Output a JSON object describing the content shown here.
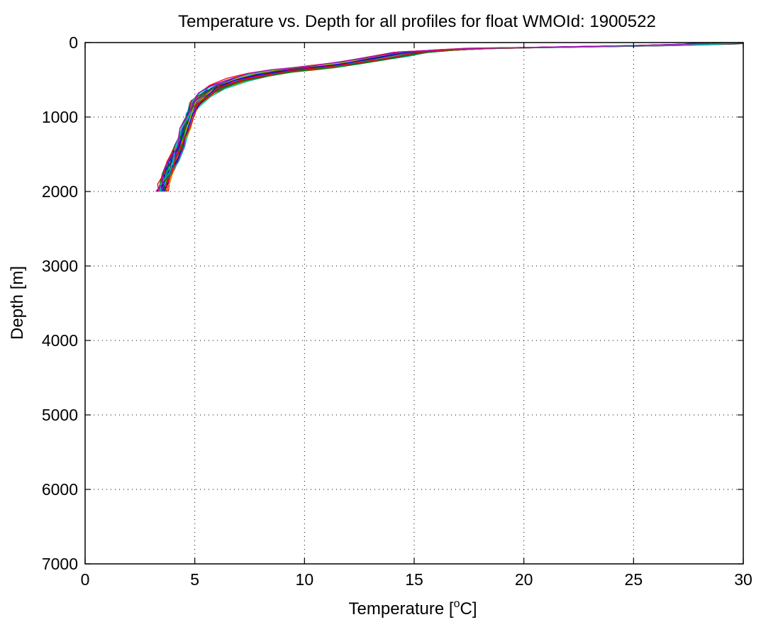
{
  "chart_data": {
    "type": "line",
    "title": "Temperature vs. Depth for all profiles for float WMOId: 1900522",
    "xlabel_prefix": "Temperature [",
    "xlabel_sup": "o",
    "xlabel_suffix": "C]",
    "ylabel": "Depth [m]",
    "xlim": [
      0,
      30
    ],
    "ylim": [
      0,
      7000
    ],
    "y_reversed": true,
    "grid": true,
    "grid_style": "dotted",
    "x_ticks": [
      0,
      5,
      10,
      15,
      20,
      25,
      30
    ],
    "x_tick_labels": [
      "0",
      "5",
      "10",
      "15",
      "20",
      "25",
      "30"
    ],
    "y_ticks": [
      0,
      1000,
      2000,
      3000,
      4000,
      5000,
      6000,
      7000
    ],
    "y_tick_labels": [
      "0",
      "1000",
      "2000",
      "3000",
      "4000",
      "5000",
      "6000",
      "7000"
    ],
    "series_colors": [
      "#0000ff",
      "#008000",
      "#ff0000",
      "#00bfbf",
      "#bf00bf",
      "#bfbf00",
      "#404040"
    ],
    "series_count": 40,
    "representative_profile": {
      "temperature": [
        29.5,
        28.5,
        26.0,
        22.0,
        18.0,
        16.5,
        15.0,
        14.0,
        13.0,
        12.0,
        11.0,
        10.0,
        9.0,
        8.0,
        7.0,
        6.0,
        5.5,
        5.0,
        4.8,
        4.6,
        4.3,
        4.0,
        3.8,
        3.6,
        3.5
      ],
      "depth": [
        0,
        20,
        40,
        60,
        80,
        100,
        130,
        180,
        230,
        280,
        320,
        350,
        380,
        430,
        500,
        600,
        700,
        820,
        950,
        1150,
        1400,
        1600,
        1750,
        1900,
        2000
      ]
    }
  }
}
